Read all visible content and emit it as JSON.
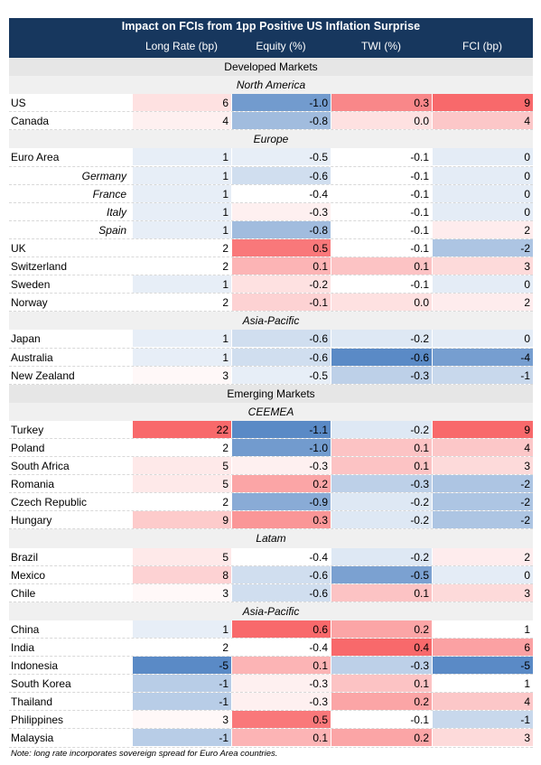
{
  "chart_data": {
    "type": "table",
    "title": "Impact on FCIs from 1pp Positive US Inflation Surprise",
    "columns": [
      "Long Rate (bp)",
      "Equity (%)",
      "TWI (%)",
      "FCI (bp)"
    ],
    "groups": [
      {
        "label": "Developed Markets",
        "subgroups": [
          {
            "label": "North America",
            "rows": [
              {
                "name": "US",
                "indent": false,
                "values": [
                  "6",
                  "-1.0",
                  "0.3",
                  "9"
                ]
              },
              {
                "name": "Canada",
                "indent": false,
                "values": [
                  "4",
                  "-0.8",
                  "0.0",
                  "4"
                ]
              }
            ]
          },
          {
            "label": "Europe",
            "rows": [
              {
                "name": "Euro Area",
                "indent": false,
                "values": [
                  "1",
                  "-0.5",
                  "-0.1",
                  "0"
                ]
              },
              {
                "name": "Germany",
                "indent": true,
                "values": [
                  "1",
                  "-0.6",
                  "-0.1",
                  "0"
                ]
              },
              {
                "name": "France",
                "indent": true,
                "values": [
                  "1",
                  "-0.4",
                  "-0.1",
                  "0"
                ]
              },
              {
                "name": "Italy",
                "indent": true,
                "values": [
                  "1",
                  "-0.3",
                  "-0.1",
                  "0"
                ]
              },
              {
                "name": "Spain",
                "indent": true,
                "values": [
                  "1",
                  "-0.8",
                  "-0.1",
                  "2"
                ]
              },
              {
                "name": "UK",
                "indent": false,
                "values": [
                  "2",
                  "0.5",
                  "-0.1",
                  "-2"
                ]
              },
              {
                "name": "Switzerland",
                "indent": false,
                "values": [
                  "2",
                  "0.1",
                  "0.1",
                  "3"
                ]
              },
              {
                "name": "Sweden",
                "indent": false,
                "values": [
                  "1",
                  "-0.2",
                  "-0.1",
                  "0"
                ]
              },
              {
                "name": "Norway",
                "indent": false,
                "values": [
                  "2",
                  "-0.1",
                  "0.0",
                  "2"
                ]
              }
            ]
          },
          {
            "label": "Asia-Pacific",
            "rows": [
              {
                "name": "Japan",
                "indent": false,
                "values": [
                  "1",
                  "-0.6",
                  "-0.2",
                  "0"
                ]
              },
              {
                "name": "Australia",
                "indent": false,
                "values": [
                  "1",
                  "-0.6",
                  "-0.6",
                  "-4"
                ]
              },
              {
                "name": "New Zealand",
                "indent": false,
                "values": [
                  "3",
                  "-0.5",
                  "-0.3",
                  "-1"
                ]
              }
            ]
          }
        ]
      },
      {
        "label": "Emerging Markets",
        "subgroups": [
          {
            "label": "CEEMEA",
            "rows": [
              {
                "name": "Turkey",
                "indent": false,
                "values": [
                  "22",
                  "-1.1",
                  "-0.2",
                  "9"
                ]
              },
              {
                "name": "Poland",
                "indent": false,
                "values": [
                  "2",
                  "-1.0",
                  "0.1",
                  "4"
                ]
              },
              {
                "name": "South Africa",
                "indent": false,
                "values": [
                  "5",
                  "-0.3",
                  "0.1",
                  "3"
                ]
              },
              {
                "name": "Romania",
                "indent": false,
                "values": [
                  "5",
                  "0.2",
                  "-0.3",
                  "-2"
                ]
              },
              {
                "name": "Czech Republic",
                "indent": false,
                "values": [
                  "2",
                  "-0.9",
                  "-0.2",
                  "-2"
                ]
              },
              {
                "name": "Hungary",
                "indent": false,
                "values": [
                  "9",
                  "0.3",
                  "-0.2",
                  "-2"
                ]
              }
            ]
          },
          {
            "label": "Latam",
            "rows": [
              {
                "name": "Brazil",
                "indent": false,
                "values": [
                  "5",
                  "-0.4",
                  "-0.2",
                  "2"
                ]
              },
              {
                "name": "Mexico",
                "indent": false,
                "values": [
                  "8",
                  "-0.6",
                  "-0.5",
                  "0"
                ]
              },
              {
                "name": "Chile",
                "indent": false,
                "values": [
                  "3",
                  "-0.6",
                  "0.1",
                  "3"
                ]
              }
            ]
          },
          {
            "label": "Asia-Pacific",
            "rows": [
              {
                "name": "China",
                "indent": false,
                "values": [
                  "1",
                  "0.6",
                  "0.2",
                  "1"
                ]
              },
              {
                "name": "India",
                "indent": false,
                "values": [
                  "2",
                  "-0.4",
                  "0.4",
                  "6"
                ]
              },
              {
                "name": "Indonesia",
                "indent": false,
                "values": [
                  "-5",
                  "0.1",
                  "-0.3",
                  "-5"
                ]
              },
              {
                "name": "South Korea",
                "indent": false,
                "values": [
                  "-1",
                  "-0.3",
                  "0.1",
                  "1"
                ]
              },
              {
                "name": "Thailand",
                "indent": false,
                "values": [
                  "-1",
                  "-0.3",
                  "0.2",
                  "4"
                ]
              },
              {
                "name": "Philippines",
                "indent": false,
                "values": [
                  "3",
                  "0.5",
                  "-0.1",
                  "-1"
                ]
              },
              {
                "name": "Malaysia",
                "indent": false,
                "values": [
                  "-1",
                  "0.1",
                  "0.2",
                  "3"
                ]
              }
            ]
          }
        ]
      }
    ],
    "note": "Note: long rate incorporates sovereign spread for Euro Area countries.",
    "colors": {
      "header_bg": "#17375e",
      "high": "#f8696b",
      "low": "#5a8ac6",
      "mid": "#ffffff"
    }
  }
}
